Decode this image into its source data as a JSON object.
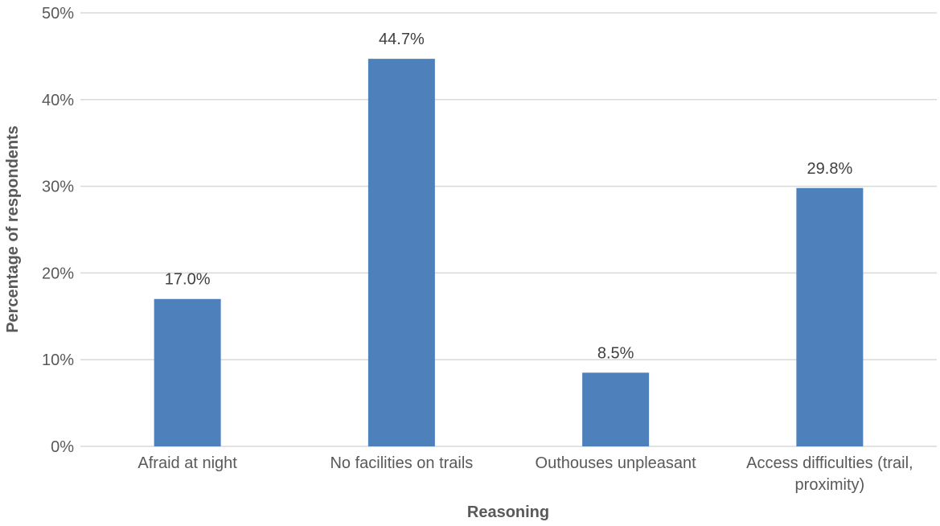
{
  "chart_data": {
    "type": "bar",
    "categories": [
      [
        "Afraid at night"
      ],
      [
        "No facilities on trails"
      ],
      [
        "Outhouses unpleasant"
      ],
      [
        "Access difficulties (trail,",
        "proximity)"
      ]
    ],
    "values": [
      17.0,
      44.7,
      8.5,
      29.8
    ],
    "data_labels": [
      "17.0%",
      "44.7%",
      "8.5%",
      "29.8%"
    ],
    "xlabel": "Reasoning",
    "ylabel": "Percentage of respondents",
    "ylim": [
      0,
      50
    ],
    "yticks": [
      0,
      10,
      20,
      30,
      40,
      50
    ],
    "ytick_labels": [
      "0%",
      "10%",
      "20%",
      "30%",
      "40%",
      "50%"
    ],
    "grid": "horizontal",
    "bar_color": "#4e80bc"
  }
}
